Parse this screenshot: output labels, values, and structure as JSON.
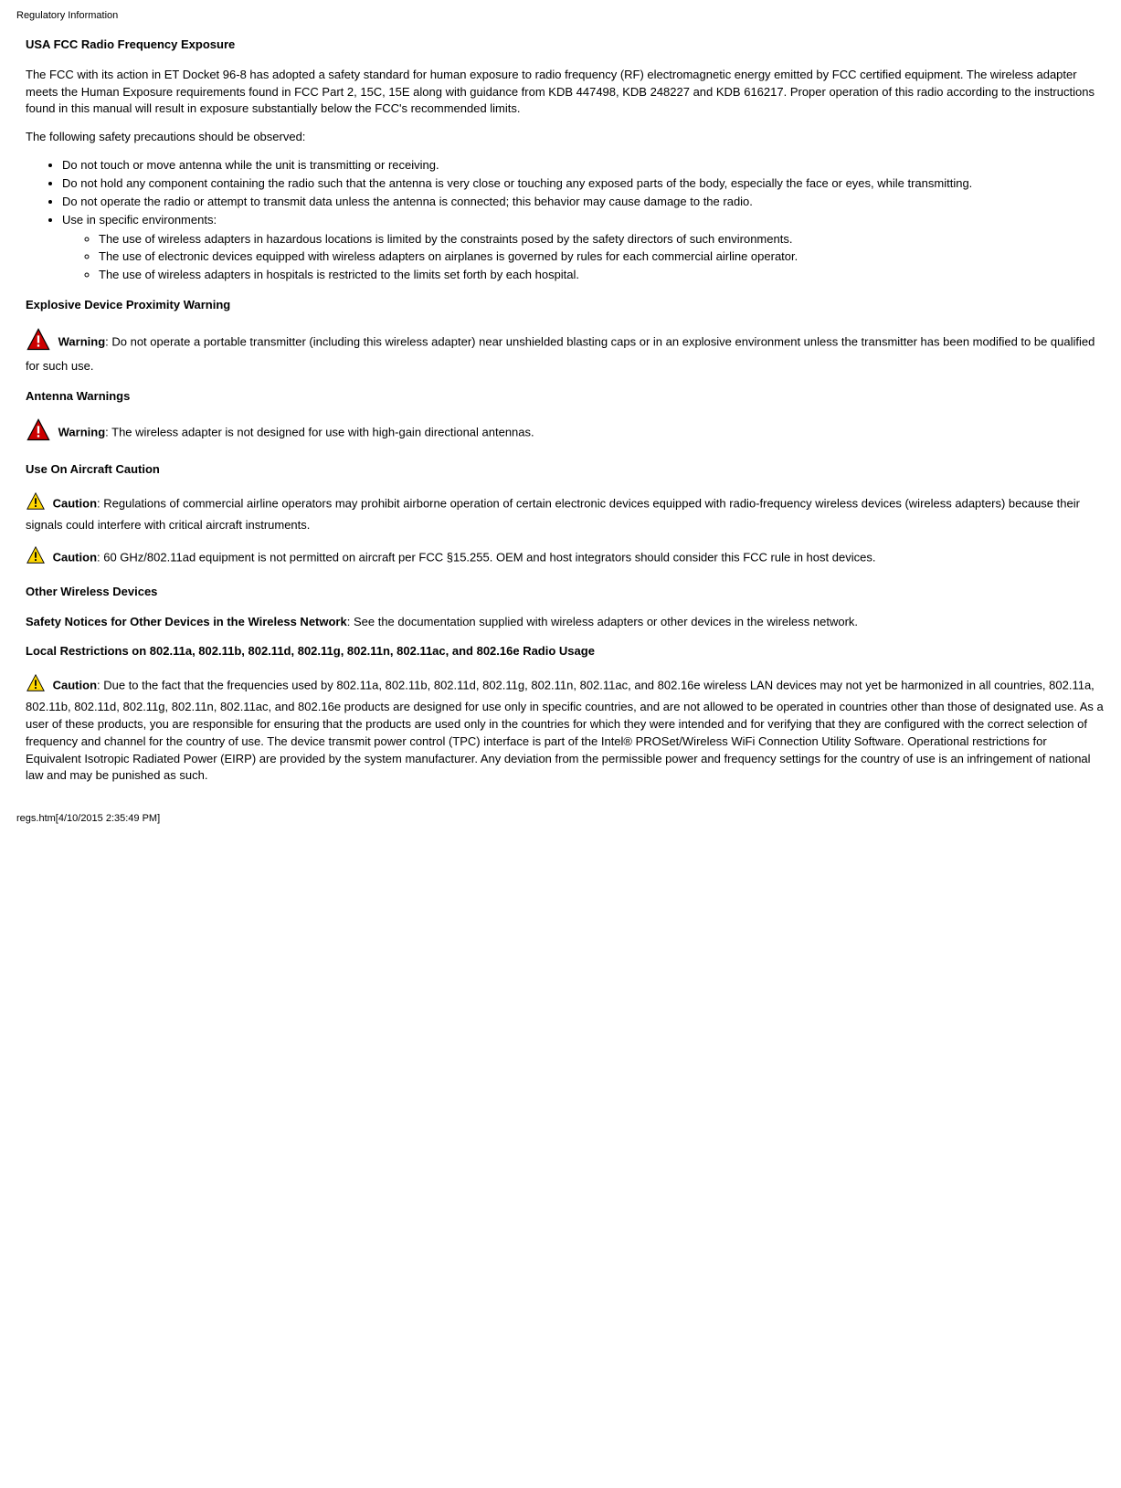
{
  "header": {
    "doc_title": "Regulatory Information"
  },
  "section1": {
    "title": "USA FCC Radio Frequency Exposure",
    "para1": "The FCC with its action in ET Docket 96-8 has adopted a safety standard for human exposure to radio frequency (RF) electromagnetic energy emitted by FCC certified equipment. The wireless adapter meets the Human Exposure requirements found in FCC Part 2, 15C, 15E along with guidance from KDB 447498, KDB 248227 and KDB 616217. Proper operation of this radio according to the instructions found in this manual will result in exposure substantially below the FCC's recommended limits.",
    "para2": "The following safety precautions should be observed:",
    "bullets": [
      "Do not touch or move antenna while the unit is transmitting or receiving.",
      "Do not hold any component containing the radio such that the antenna is very close or touching any exposed parts of the body, especially the face or eyes, while transmitting.",
      "Do not operate the radio or attempt to transmit data unless the antenna is connected; this behavior may cause damage to the radio.",
      "Use in specific environments:"
    ],
    "sub_bullets": [
      "The use of wireless adapters in hazardous locations is limited by the constraints posed by the safety directors of such environments.",
      "The use of electronic devices equipped with wireless adapters on airplanes is governed by rules for each commercial airline operator.",
      "The use of wireless adapters in hospitals is restricted to the limits set forth by each hospital."
    ]
  },
  "section2": {
    "title": "Explosive Device Proximity Warning",
    "label": "Warning",
    "text": ": Do not operate a portable transmitter (including this wireless adapter) near unshielded blasting caps or in an explosive environment unless the transmitter has been modified to be qualified for such use."
  },
  "section3": {
    "title": "Antenna Warnings",
    "label": "Warning",
    "text": ": The wireless adapter is not designed for use with high-gain directional antennas."
  },
  "section4": {
    "title": "Use On Aircraft Caution",
    "label1": "Caution",
    "text1": ": Regulations of commercial airline operators may prohibit airborne operation of certain electronic devices equipped with radio-frequency wireless devices (wireless adapters) because their signals could interfere with critical aircraft instruments.",
    "label2": "Caution",
    "text2": ": 60 GHz/802.11ad equipment is not permitted on aircraft per FCC §15.255. OEM and host integrators should consider this FCC rule in host devices."
  },
  "section5": {
    "title": "Other Wireless Devices",
    "label": "Safety Notices for Other Devices in the Wireless Network",
    "text": ": See the documentation supplied with wireless adapters or other devices in the wireless network."
  },
  "section6": {
    "title": "Local Restrictions on 802.11a, 802.11b, 802.11d, 802.11g, 802.11n, 802.11ac, and 802.16e Radio Usage",
    "label": "Caution",
    "text": ": Due to the fact that the frequencies used by 802.11a, 802.11b, 802.11d, 802.11g, 802.11n, 802.11ac, and 802.16e wireless LAN devices may not yet be harmonized in all countries, 802.11a, 802.11b, 802.11d, 802.11g, 802.11n, 802.11ac, and 802.16e products are designed for use only in specific countries, and are not allowed to be operated in countries other than those of designated use. As a user of these products, you are responsible for ensuring that the products are used only in the countries for which they were intended and for verifying that they are configured with the correct selection of frequency and channel for the country of use. The device transmit power control (TPC) interface is part of the Intel® PROSet/Wireless WiFi Connection Utility Software. Operational restrictions for Equivalent Isotropic Radiated Power (EIRP) are provided by the system manufacturer. Any deviation from the permissible power and frequency settings for the country of use is an infringement of national law and may be punished as such."
  },
  "footer": {
    "text": "regs.htm[4/10/2015 2:35:49 PM]"
  },
  "icons": {
    "warning": {
      "fill": "#cc0000",
      "stroke": "#000000",
      "bang": "#ffffff",
      "size": 28
    },
    "caution": {
      "fill": "#ffd700",
      "stroke": "#000000",
      "bang": "#000000",
      "size": 22
    }
  }
}
